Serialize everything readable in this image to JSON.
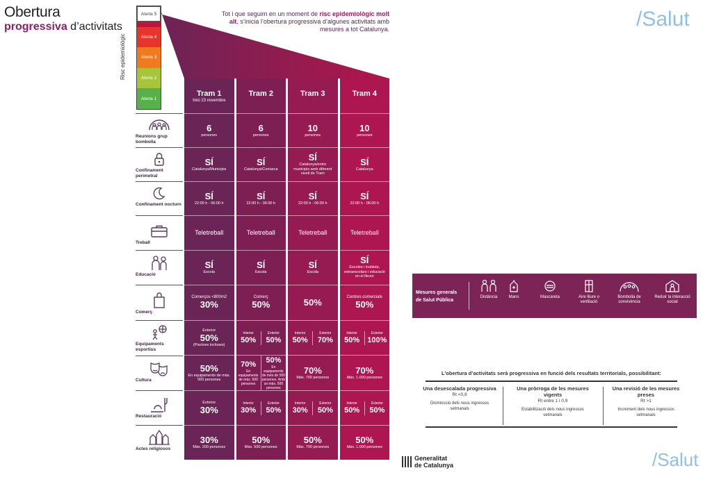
{
  "header": {
    "title1": "Obertura",
    "title2_bold": "progressiva",
    "title2_rest": " d’activitats",
    "intro_1": "Tot i que seguim en un moment de ",
    "intro_bold": "risc epidemiològic molt alt",
    "intro_2": ", s’inicia l’obertura progressiva d’algunes activitats amb mesures a tot Catalunya."
  },
  "brand": {
    "salut": "/Salut",
    "gen1": "Generalitat",
    "gen2": "de Catalunya"
  },
  "alerts": {
    "risk_label": "Risc epidemiològic",
    "levels": [
      "Alerta 5",
      "Alerta 4",
      "Alerta 3",
      "Alerta 2",
      "Alerta 1"
    ]
  },
  "colors": {
    "tram1": "#6b2456",
    "tram2": "#7e1f54",
    "tram3": "#951b52",
    "tram4": "#ad1650",
    "alert5": "#c0143c",
    "alert4": "#e8352b",
    "alert3": "#f07a1e",
    "alert2": "#a8c43a",
    "alert1": "#58b04a"
  },
  "trams": [
    {
      "title": "Tram 1",
      "sub": "Inici 23 novembre"
    },
    {
      "title": "Tram 2",
      "sub": ""
    },
    {
      "title": "Tram 3",
      "sub": ""
    },
    {
      "title": "Tram 4",
      "sub": ""
    }
  ],
  "categories": [
    {
      "label": "Reunions grup bombolla",
      "icon": "group-bubble-icon"
    },
    {
      "label": "Confinament perimetral",
      "icon": "lock-icon"
    },
    {
      "label": "Confinament nocturn",
      "icon": "moon-icon"
    },
    {
      "label": "Treball",
      "icon": "briefcase-icon"
    },
    {
      "label": "Educació",
      "icon": "students-icon"
    },
    {
      "label": "Comerç",
      "icon": "shopping-bag-icon"
    },
    {
      "label": "Equipaments esportius",
      "icon": "sports-icon"
    },
    {
      "label": "Cultura",
      "icon": "theater-masks-icon"
    },
    {
      "label": "Restauració",
      "icon": "cutlery-icon"
    },
    {
      "label": "Actes religiosos",
      "icon": "temple-icon"
    }
  ],
  "cells": {
    "r0": [
      {
        "v": "6",
        "s": "persones"
      },
      {
        "v": "6",
        "s": "persones"
      },
      {
        "v": "10",
        "s": "persones"
      },
      {
        "v": "10",
        "s": "persones"
      }
    ],
    "r1": [
      {
        "v": "SÍ",
        "s": "Catalunya/Municipis"
      },
      {
        "v": "SÍ",
        "s": "Catalunya/Comarca"
      },
      {
        "v": "SÍ",
        "s": "Catalunya/entre municipis amb diferent nivell de Tram"
      },
      {
        "v": "SÍ",
        "s": "Catalunya"
      }
    ],
    "r2": [
      {
        "v": "SÍ",
        "s": "22:00 h - 06:00 h"
      },
      {
        "v": "SÍ",
        "s": "22:00 h - 06:00 h"
      },
      {
        "v": "SÍ",
        "s": "22:00 h - 06:00 h"
      },
      {
        "v": "SÍ",
        "s": "22:00 h - 06:00 h"
      }
    ],
    "r3": [
      "Teletreball",
      "Teletreball",
      "Teletreball",
      "Teletreball"
    ],
    "r4": [
      {
        "v": "SÍ",
        "s": "Escola"
      },
      {
        "v": "SÍ",
        "s": "Escola"
      },
      {
        "v": "SÍ",
        "s": "Escola"
      },
      {
        "v": "SÍ",
        "s": "Escoles i instituts, extraescolars i educació en el lleure"
      }
    ],
    "r5": [
      {
        "t": "Comerços <800m2",
        "v": "30%"
      },
      {
        "t": "Comerç",
        "v": "50%"
      },
      {
        "t": "",
        "v": "50%"
      },
      {
        "t": "Centres comercials",
        "v": "50%"
      }
    ],
    "r6": {
      "c1": {
        "t": "Exterior",
        "v": "50%",
        "s": "(Piscines incloses)"
      },
      "c2": [
        {
          "t": "Interior",
          "v": "50%"
        },
        {
          "t": "Exterior",
          "v": "50%"
        }
      ],
      "c3": [
        {
          "t": "Interior",
          "v": "50%"
        },
        {
          "t": "Exterior",
          "v": "70%"
        }
      ],
      "c4": [
        {
          "t": "Interior",
          "v": "50%"
        },
        {
          "t": "Exterior",
          "v": "100%"
        }
      ]
    },
    "r7": {
      "c1": {
        "v": "50%",
        "s": "En equipaments de màx. 500 persones"
      },
      "c2": [
        {
          "v": "70%",
          "s": "En equipaments de màx. 500 persones"
        },
        {
          "v": "50%",
          "s": "En equipaments de més de 500 persones. Amb un màx. 500 persones"
        }
      ],
      "c3": {
        "v": "70%",
        "s": "Màx. 700 persones"
      },
      "c4": {
        "v": "70%",
        "s": "Màx. 1.000 persones"
      }
    },
    "r8": {
      "c1": {
        "t": "Exterior",
        "v": "30%"
      },
      "c2": [
        {
          "t": "Interior",
          "v": "30%"
        },
        {
          "t": "Exterior",
          "v": "50%"
        }
      ],
      "c3": [
        {
          "t": "Interior",
          "v": "30%"
        },
        {
          "t": "Exterior",
          "v": "50%"
        }
      ],
      "c4": [
        {
          "t": "Interior",
          "v": "50%"
        },
        {
          "t": "Exterior",
          "v": "50%"
        }
      ]
    },
    "r9": [
      {
        "v": "30%",
        "s": "Màx. 200 persones"
      },
      {
        "v": "50%",
        "s": "Màx. 500 persones"
      },
      {
        "v": "50%",
        "s": "Màx. 700 persones"
      },
      {
        "v": "50%",
        "s": "Màx. 1.000 persones"
      }
    ]
  },
  "measures": {
    "title1": "Mesures generals",
    "title2": "de Salut Pública",
    "items": [
      {
        "label": "Distància",
        "icon": "distance-icon"
      },
      {
        "label": "Mans",
        "icon": "hands-icon"
      },
      {
        "label": "Mascareta",
        "icon": "mask-icon"
      },
      {
        "label": "Aire lliure o ventilació",
        "icon": "ventilation-icon"
      },
      {
        "label": "Bombolla de convivència",
        "icon": "bubble-icon"
      },
      {
        "label": "Reduir la interacció social",
        "icon": "reduce-interaction-icon"
      }
    ]
  },
  "progressive": {
    "title": "L’obertura d’activitats serà progressiva en funció dels resultats territorials, possibilitant:",
    "cols": [
      {
        "h": "Una desescalada progressiva",
        "r": "Rt <0,9",
        "d": "Disminució dels nous ingressos setmanals"
      },
      {
        "h": "Una pròrroga de les mesures vigents",
        "r": "Rt entre 1 i 0,9",
        "d": "Estabilització dels nous ingressos setmanals"
      },
      {
        "h": "Una revisió de les mesures preses",
        "r": "Rt >1",
        "d": "Increment dels nous ingressos setmanals"
      }
    ]
  }
}
